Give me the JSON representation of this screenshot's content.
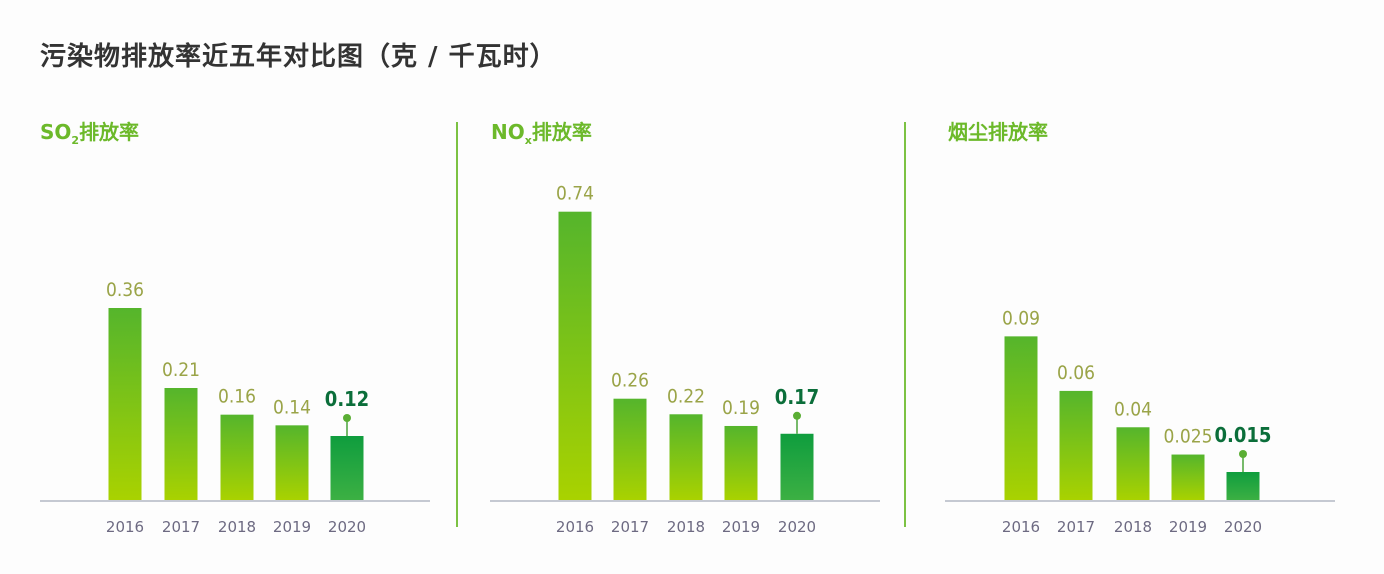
{
  "title": "污染物排放率近五年对比图（克 / 千瓦时）",
  "colors": {
    "bar_top": "#55b52c",
    "bar_bottom": "#a9d200",
    "highlight_top": "#0f9d3e",
    "highlight_bottom": "#3cb043",
    "label": "#9aa448",
    "highlight_label": "#0b6e3a",
    "year": "#6d6a82",
    "axis": "#c5c9d2",
    "subtitle": "#6cb92a"
  },
  "chart_data": [
    {
      "type": "bar",
      "title_main": "SO",
      "title_sub": "2",
      "title_rest": "排放率",
      "categories": [
        "2016",
        "2017",
        "2018",
        "2019",
        "2020"
      ],
      "values": [
        0.36,
        0.21,
        0.16,
        0.14,
        0.12
      ],
      "labels": [
        "0.36",
        "0.21",
        "0.16",
        "0.14",
        "0.12"
      ],
      "highlight": "2020",
      "ylim": [
        0,
        0.5625
      ],
      "grid": false
    },
    {
      "type": "bar",
      "title_main": "NO",
      "title_sub": "x",
      "title_rest": "排放率",
      "categories": [
        "2016",
        "2017",
        "2018",
        "2019",
        "2020"
      ],
      "values": [
        0.74,
        0.26,
        0.22,
        0.19,
        0.17
      ],
      "labels": [
        "0.74",
        "0.26",
        "0.22",
        "0.19",
        "0.17"
      ],
      "highlight": "2020",
      "ylim": [
        0,
        0.77
      ],
      "grid": false
    },
    {
      "type": "bar",
      "title_main": "烟尘排放率",
      "title_sub": "",
      "title_rest": "",
      "categories": [
        "2016",
        "2017",
        "2018",
        "2019",
        "2020"
      ],
      "values": [
        0.09,
        0.06,
        0.04,
        0.025,
        0.015
      ],
      "labels": [
        "0.09",
        "0.06",
        "0.04",
        "0.025",
        "0.015"
      ],
      "highlight": "2020",
      "ylim": [
        0,
        0.165
      ],
      "grid": false
    }
  ]
}
